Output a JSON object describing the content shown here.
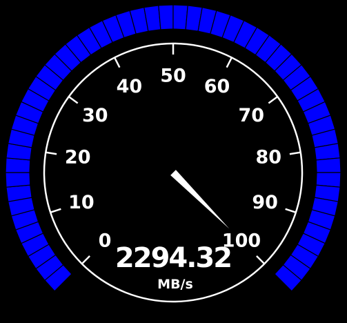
{
  "gauge": {
    "value": 2294.32,
    "value_text": "2294.32",
    "unit": "MB/s",
    "scale_labels": [
      "0",
      "10",
      "20",
      "30",
      "40",
      "50",
      "60",
      "70",
      "80",
      "90",
      "100"
    ],
    "scale_min": 0,
    "scale_max": 100,
    "needle_position": 100,
    "colors": {
      "background": "#000000",
      "band": "#0000ff",
      "dial": "#ffffff",
      "needle": "#ffffff",
      "text": "#ffffff"
    }
  }
}
